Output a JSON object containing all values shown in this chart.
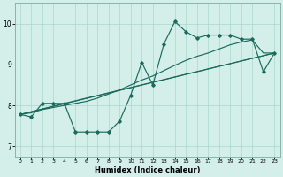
{
  "xlabel": "Humidex (Indice chaleur)",
  "xlim": [
    -0.5,
    23.5
  ],
  "ylim": [
    6.75,
    10.5
  ],
  "xticks": [
    0,
    1,
    2,
    3,
    4,
    5,
    6,
    7,
    8,
    9,
    10,
    11,
    12,
    13,
    14,
    15,
    16,
    17,
    18,
    19,
    20,
    21,
    22,
    23
  ],
  "yticks": [
    7,
    8,
    9,
    10
  ],
  "bg_color": "#d4eeea",
  "line_color": "#1a6b5e",
  "gridcolor": "#a8d8d0",
  "line1_x": [
    0,
    1,
    2,
    3,
    4,
    5,
    6,
    7,
    8,
    9,
    10,
    11,
    12,
    13,
    14,
    15,
    16,
    17,
    18,
    19,
    20,
    21,
    22,
    23
  ],
  "line1_y": [
    7.78,
    7.72,
    8.05,
    8.05,
    8.05,
    7.35,
    7.35,
    7.35,
    7.35,
    7.62,
    8.25,
    9.05,
    8.5,
    9.5,
    10.05,
    9.8,
    9.65,
    9.72,
    9.72,
    9.72,
    9.62,
    9.62,
    8.82,
    9.28
  ],
  "line2_x": [
    0,
    1,
    2,
    3,
    4,
    5,
    6,
    7,
    8,
    9,
    10,
    11,
    12,
    13,
    14,
    15,
    16,
    17,
    18,
    19,
    20,
    21,
    22,
    23
  ],
  "line2_y": [
    7.78,
    7.82,
    7.9,
    7.95,
    8.0,
    8.05,
    8.1,
    8.18,
    8.28,
    8.38,
    8.5,
    8.62,
    8.72,
    8.85,
    8.98,
    9.1,
    9.2,
    9.28,
    9.38,
    9.48,
    9.55,
    9.6,
    9.28,
    9.28
  ],
  "line3_x": [
    0,
    23
  ],
  "line3_y": [
    7.78,
    9.28
  ],
  "line4_x": [
    0,
    4,
    23
  ],
  "line4_y": [
    7.78,
    8.05,
    9.28
  ]
}
